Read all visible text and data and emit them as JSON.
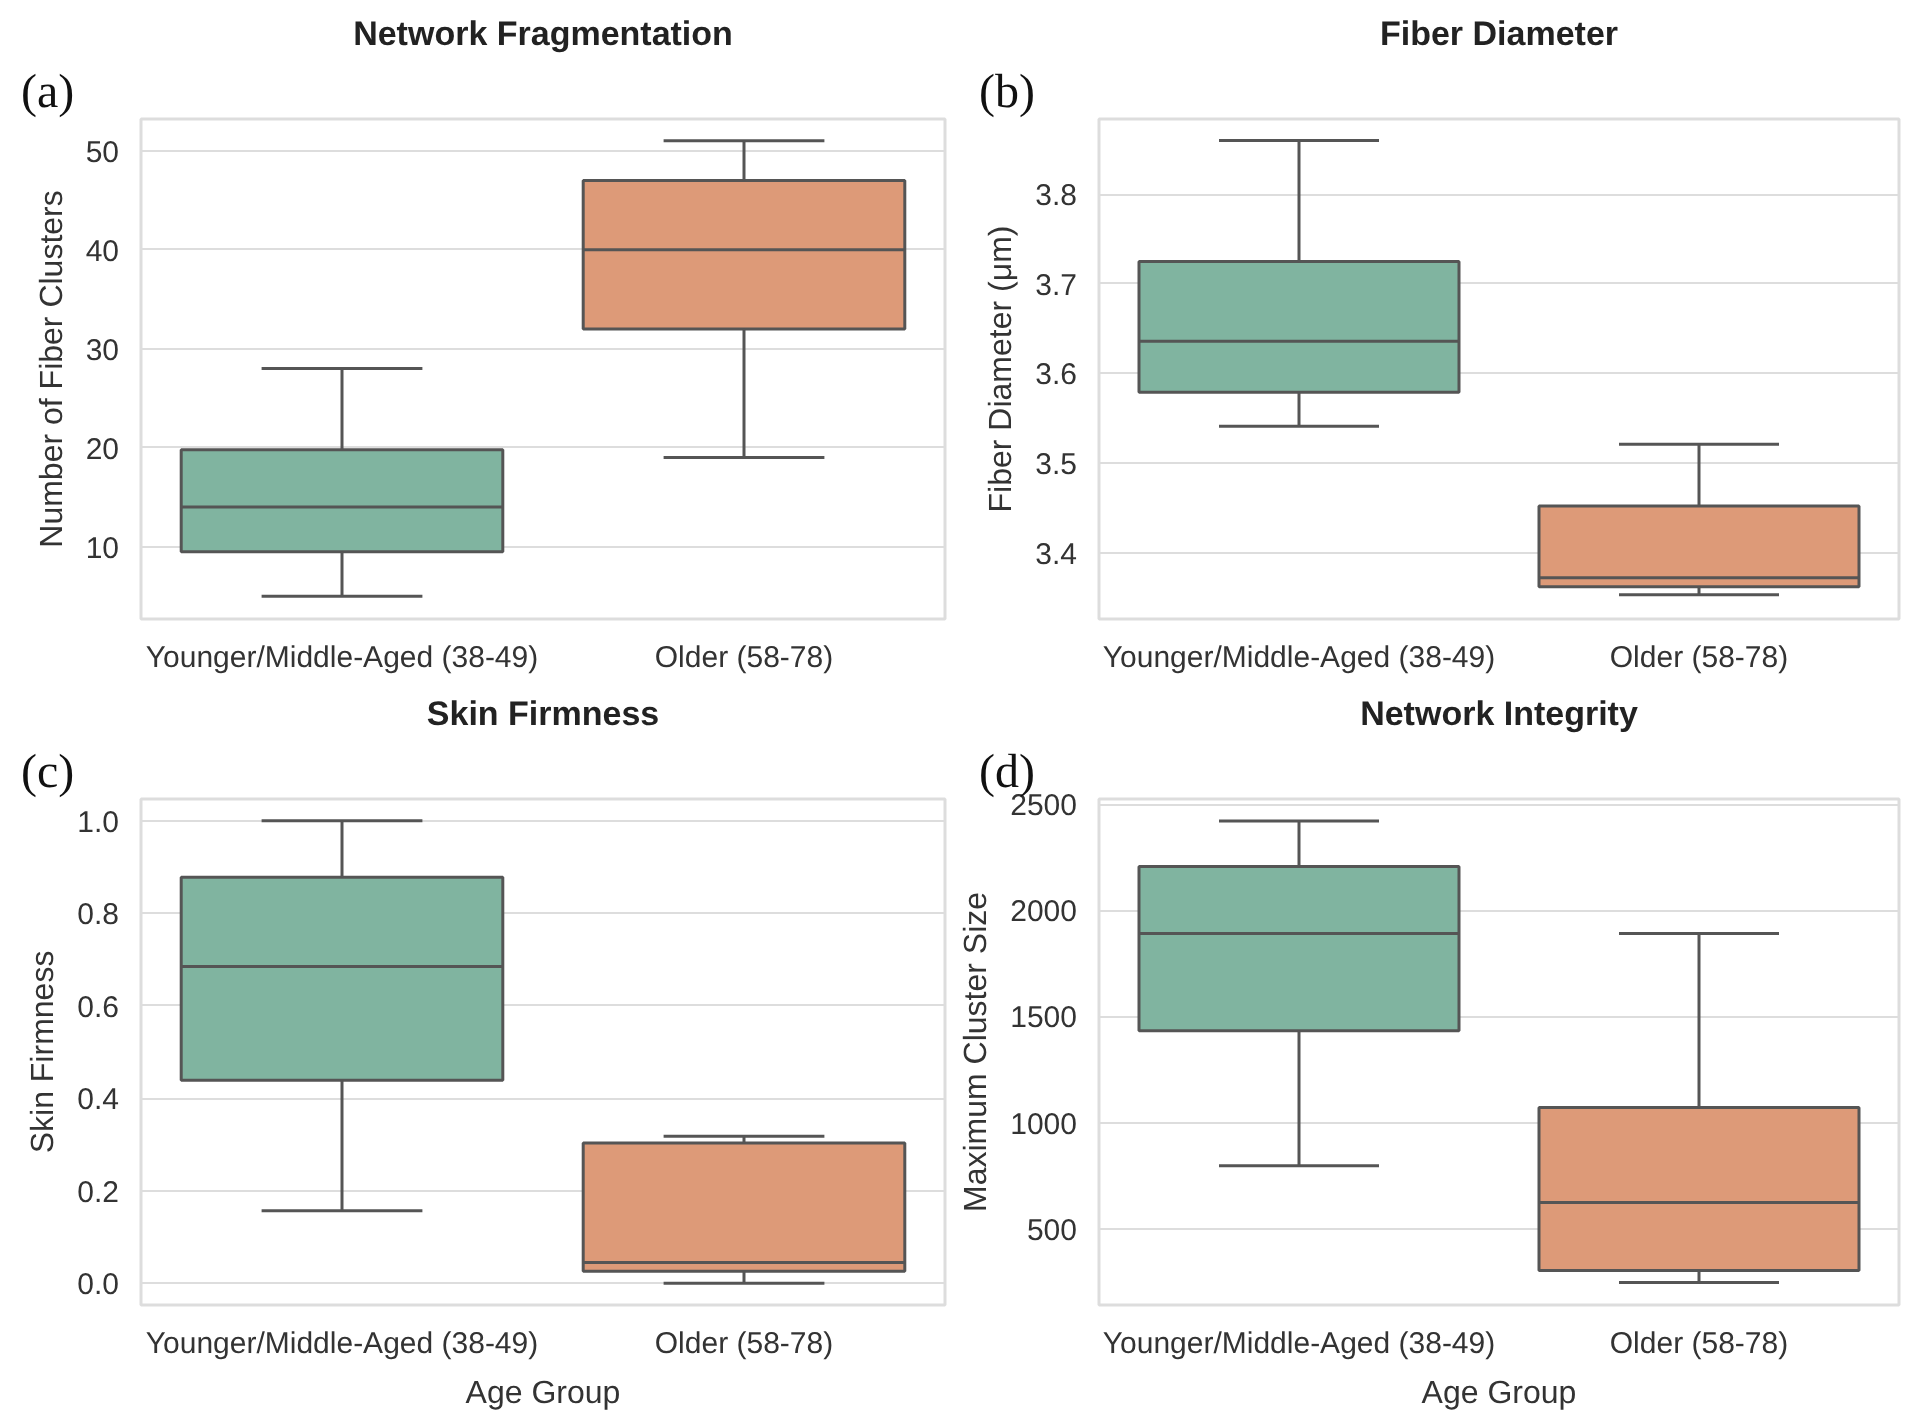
{
  "chart_data": [
    {
      "type": "box",
      "title": "Network Fragmentation",
      "ylabel": "Number of Fiber Clusters",
      "annotations": [
        "(a)"
      ],
      "categories": [
        "Younger/Middle-Aged (38-49)",
        "Older (58-78)"
      ],
      "colors": [
        "#80b4a0",
        "#dd9a78"
      ],
      "boxes": [
        {
          "low": 5,
          "q1": 9.5,
          "median": 14,
          "q3": 19.8,
          "high": 28
        },
        {
          "low": 19,
          "q1": 32,
          "median": 40,
          "q3": 47,
          "high": 51
        }
      ],
      "ylim": [
        2.7,
        53.2
      ],
      "yticks": [
        10,
        20,
        30,
        40,
        50
      ],
      "grid": "y"
    },
    {
      "type": "box",
      "title": "Fiber Diameter",
      "ylabel": "Fiber Diameter (μm)",
      "annotations": [
        "(b)"
      ],
      "categories": [
        "Younger/Middle-Aged (38-49)",
        "Older (58-78)"
      ],
      "colors": [
        "#80b4a0",
        "#dd9a78"
      ],
      "boxes": [
        {
          "low": 3.541,
          "q1": 3.579,
          "median": 3.636,
          "q3": 3.725,
          "high": 3.86
        },
        {
          "low": 3.353,
          "q1": 3.362,
          "median": 3.372,
          "q3": 3.452,
          "high": 3.521
        }
      ],
      "ylim": [
        3.326,
        3.884
      ],
      "yticks": [
        {
          "value": 3.4,
          "label": "3.4"
        },
        {
          "value": 3.5,
          "label": "3.5"
        },
        {
          "value": 3.6,
          "label": "3.6"
        },
        {
          "value": 3.7,
          "label": "3.7"
        },
        {
          "value": 3.8,
          "label": "3.8"
        }
      ],
      "grid": "y"
    },
    {
      "type": "box",
      "title": "Skin Firmness",
      "xlabel": "Age Group",
      "ylabel": "Skin Firmness",
      "annotations": [
        "(c)"
      ],
      "categories": [
        "Younger/Middle-Aged (38-49)",
        "Older (58-78)"
      ],
      "colors": [
        "#80b4a0",
        "#dd9a78"
      ],
      "boxes": [
        {
          "low": 0.157,
          "q1": 0.439,
          "median": 0.685,
          "q3": 0.878,
          "high": 1.0
        },
        {
          "low": 0.0,
          "q1": 0.026,
          "median": 0.045,
          "q3": 0.303,
          "high": 0.318
        }
      ],
      "ylim": [
        -0.047,
        1.047
      ],
      "yticks": [
        {
          "value": 0,
          "label": "0.0"
        },
        {
          "value": 0.2,
          "label": "0.2"
        },
        {
          "value": 0.4,
          "label": "0.4"
        },
        {
          "value": 0.6,
          "label": "0.6"
        },
        {
          "value": 0.8,
          "label": "0.8"
        },
        {
          "value": 1,
          "label": "1.0"
        }
      ],
      "grid": "y"
    },
    {
      "type": "box",
      "title": "Network Integrity",
      "xlabel": "Age Group",
      "ylabel": "Maximum Cluster Size",
      "annotations": [
        "(d)"
      ],
      "categories": [
        "Younger/Middle-Aged (38-49)",
        "Older (58-78)"
      ],
      "colors": [
        "#80b4a0",
        "#dd9a78"
      ],
      "boxes": [
        {
          "low": 797,
          "q1": 1432,
          "median": 1891,
          "q3": 2206,
          "high": 2420
        },
        {
          "low": 247,
          "q1": 303,
          "median": 624,
          "q3": 1071,
          "high": 1891
        }
      ],
      "ylim": [
        141,
        2524
      ],
      "yticks": [
        500,
        1000,
        1500,
        2000,
        2500
      ],
      "grid": "y"
    }
  ]
}
